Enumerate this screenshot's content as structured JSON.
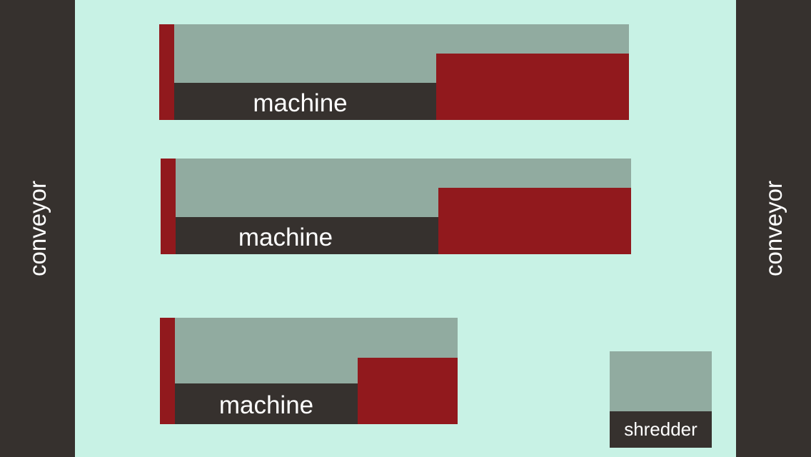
{
  "colors": {
    "background": "#c8f2e5",
    "conveyor": "#36312e",
    "machine_body": "#91aba0",
    "machine_accent": "#91191d",
    "label_bar": "#36312e",
    "text": "#ffffff"
  },
  "conveyors": {
    "left_label": "conveyor",
    "right_label": "conveyor"
  },
  "machines": [
    {
      "label": "machine"
    },
    {
      "label": "machine"
    },
    {
      "label": "machine"
    }
  ],
  "shredder": {
    "label": "shredder"
  }
}
